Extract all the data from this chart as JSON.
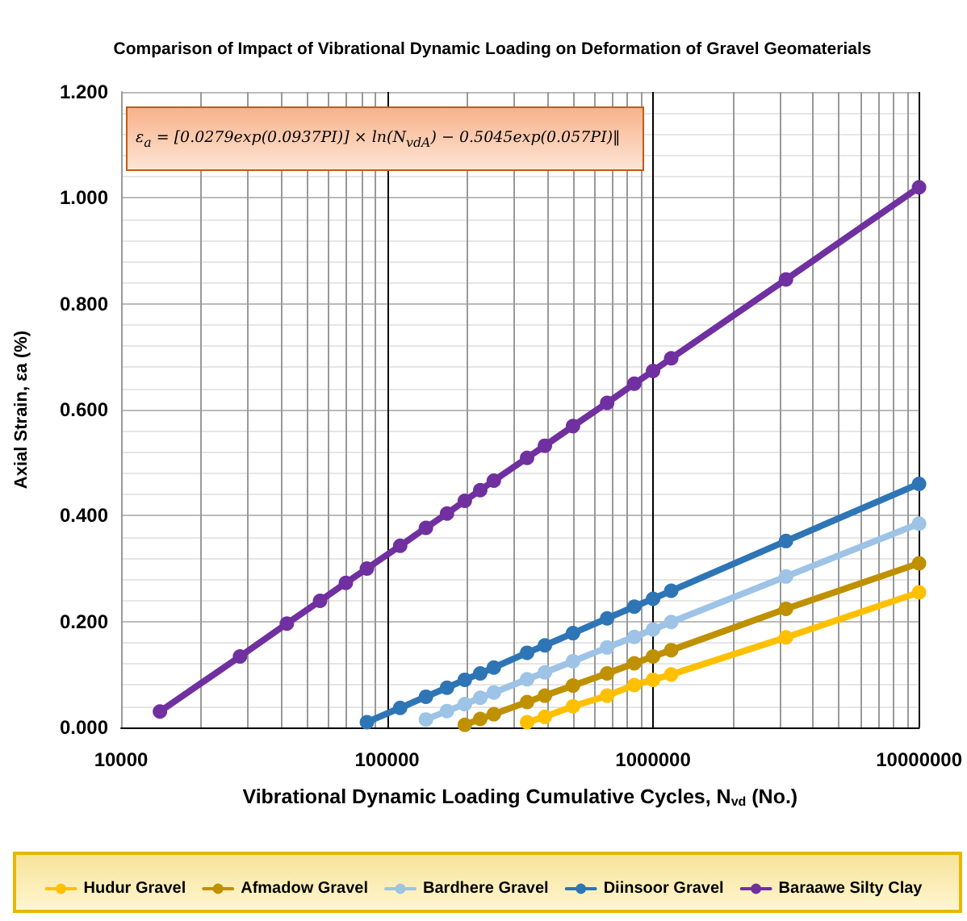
{
  "chart_data": {
    "type": "line",
    "title": "Comparison of Impact of Vibrational Dynamic Loading on Deformation of Gravel Geomaterials",
    "xlabel": "Vibrational Dynamic Loading Cumulative Cycles, N$_{vd}$ (No.)",
    "ylabel": "Axial Strain, εa (%)",
    "annotations": [
      "ε$_{a}$ = [0.0279exp(0.0937PI)] × ln(N$_{vdA}$) − 0.5045exp(0.057PI)‖"
    ],
    "log": "x",
    "xlim": [
      10000,
      10000000
    ],
    "xticks": [
      10000,
      100000,
      1000000,
      10000000
    ],
    "ylim": [
      0,
      1.2
    ],
    "yticks": [
      {
        "value": 0,
        "label": "0.000"
      },
      {
        "value": 0.2,
        "label": "0.200"
      },
      {
        "value": 0.4,
        "label": "0.400"
      },
      {
        "value": 0.6,
        "label": "0.600"
      },
      {
        "value": 0.8,
        "label": "0.800"
      },
      {
        "value": 1.0,
        "label": "1.000"
      },
      {
        "value": 1.2,
        "label": "1.200"
      }
    ],
    "grid": true,
    "legend": "bottom",
    "marker": "circle",
    "line_style": "solid",
    "series": [
      {
        "name": "Hudur Gravel",
        "color": "#ffc000",
        "x": [
          336000,
          392000,
          500000,
          672000,
          850000,
          1000000,
          1170000,
          3160000,
          10000000
        ],
        "values": [
          0.01,
          0.02,
          0.04,
          0.06,
          0.08,
          0.09,
          0.1,
          0.17,
          0.255
        ]
      },
      {
        "name": "Afmadow Gravel",
        "color": "#bf9000",
        "x": [
          196000,
          224000,
          252000,
          336000,
          392000,
          500000,
          672000,
          850000,
          1000000,
          1170000,
          3160000,
          10000000
        ],
        "values": [
          0.005,
          0.016,
          0.025,
          0.048,
          0.06,
          0.079,
          0.102,
          0.121,
          0.134,
          0.146,
          0.224,
          0.31
        ]
      },
      {
        "name": "Bardhere Gravel",
        "color": "#9dc3e6",
        "x": [
          140000,
          168000,
          196000,
          224000,
          252000,
          336000,
          392000,
          500000,
          672000,
          850000,
          1000000,
          1170000,
          3160000,
          10000000
        ],
        "values": [
          0.015,
          0.031,
          0.044,
          0.056,
          0.066,
          0.091,
          0.104,
          0.125,
          0.151,
          0.171,
          0.185,
          0.199,
          0.285,
          0.385
        ]
      },
      {
        "name": "Diinsoor Gravel",
        "color": "#2e75b6",
        "x": [
          84000,
          112000,
          140000,
          168000,
          196000,
          224000,
          252000,
          336000,
          392000,
          500000,
          672000,
          850000,
          1000000,
          1170000,
          3160000,
          10000000
        ],
        "values": [
          0.01,
          0.037,
          0.058,
          0.075,
          0.09,
          0.102,
          0.113,
          0.141,
          0.155,
          0.178,
          0.206,
          0.228,
          0.243,
          0.258,
          0.352,
          0.46
        ]
      },
      {
        "name": "Baraawe Silty Clay",
        "color": "#7030a0",
        "x": [
          14000,
          28000,
          42000,
          56000,
          70000,
          84000,
          112000,
          140000,
          168000,
          196000,
          224000,
          252000,
          336000,
          392000,
          500000,
          672000,
          850000,
          1000000,
          1170000,
          3160000,
          10000000
        ],
        "values": [
          0.03,
          0.134,
          0.196,
          0.239,
          0.273,
          0.3,
          0.343,
          0.377,
          0.404,
          0.428,
          0.448,
          0.466,
          0.509,
          0.532,
          0.569,
          0.613,
          0.649,
          0.673,
          0.697,
          0.846,
          1.02
        ]
      }
    ]
  }
}
